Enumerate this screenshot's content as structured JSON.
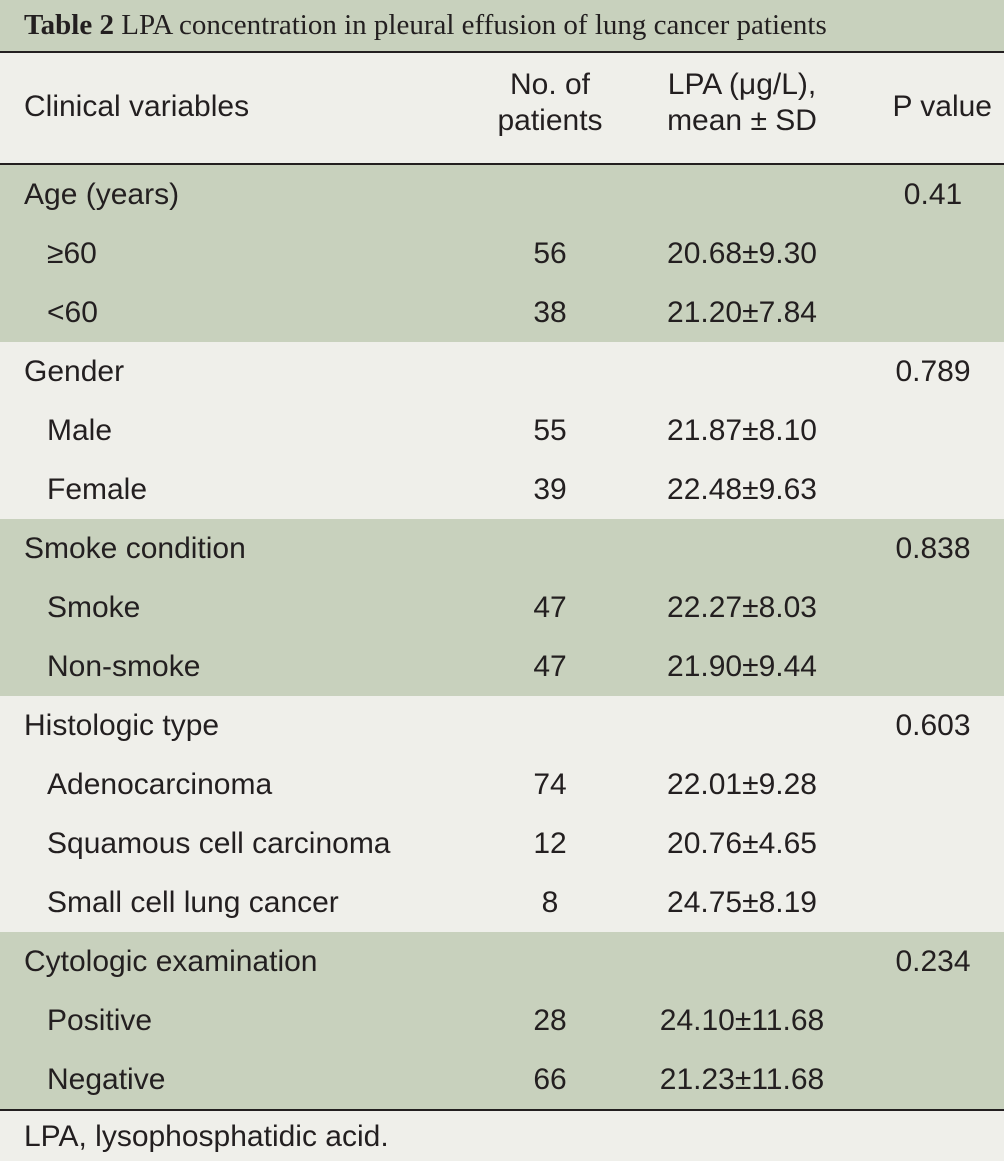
{
  "caption": {
    "label": "Table 2",
    "text": " LPA concentration in pleural effusion of lung cancer patients"
  },
  "header": {
    "variables": "Clinical variables",
    "patients_line1": "No. of",
    "patients_line2": "patients",
    "lpa_line1": "LPA (μg/L),",
    "lpa_line2": "mean ± SD",
    "p_value": "P value"
  },
  "groups": [
    {
      "title": "Age (years)",
      "p": "0.41",
      "shade": "green",
      "rows": [
        {
          "label": "≥60",
          "n": "56",
          "lpa": "20.68±9.30"
        },
        {
          "label": "<60",
          "n": "38",
          "lpa": "21.20±7.84"
        }
      ]
    },
    {
      "title": "Gender",
      "p": "0.789",
      "shade": "light",
      "rows": [
        {
          "label": "Male",
          "n": "55",
          "lpa": "21.87±8.10"
        },
        {
          "label": "Female",
          "n": "39",
          "lpa": "22.48±9.63"
        }
      ]
    },
    {
      "title": "Smoke condition",
      "p": "0.838",
      "shade": "green",
      "rows": [
        {
          "label": "Smoke",
          "n": "47",
          "lpa": "22.27±8.03"
        },
        {
          "label": "Non-smoke",
          "n": "47",
          "lpa": "21.90±9.44"
        }
      ]
    },
    {
      "title": "Histologic type",
      "p": "0.603",
      "shade": "light",
      "rows": [
        {
          "label": "Adenocarcinoma",
          "n": "74",
          "lpa": "22.01±9.28"
        },
        {
          "label": "Squamous cell carcinoma",
          "n": "12",
          "lpa": "20.76±4.65"
        },
        {
          "label": "Small cell lung cancer",
          "n": "8",
          "lpa": "24.75±8.19"
        }
      ]
    },
    {
      "title": "Cytologic examination",
      "p": "0.234",
      "shade": "green",
      "rows": [
        {
          "label": "Positive",
          "n": "28",
          "lpa": "24.10±11.68"
        },
        {
          "label": "Negative",
          "n": "66",
          "lpa": "21.23±11.68"
        }
      ]
    }
  ],
  "footnote": "LPA, lysophosphatidic acid."
}
